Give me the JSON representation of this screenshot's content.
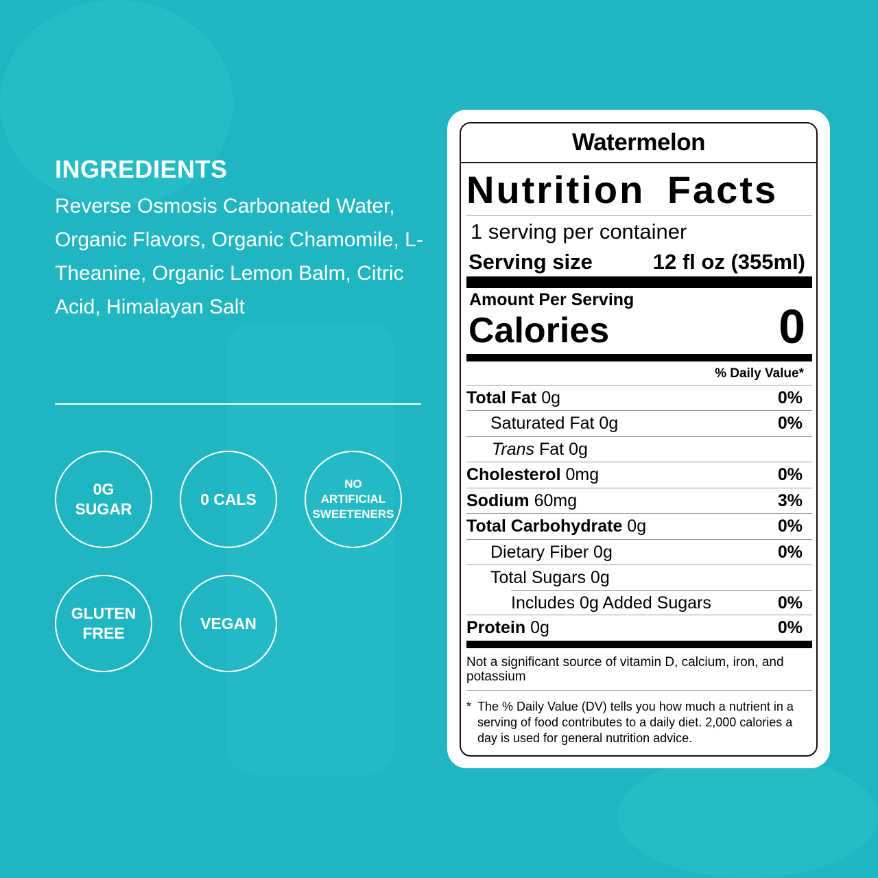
{
  "ingredients": {
    "title": "INGREDIENTS",
    "text": "Reverse Osmosis Carbonated Water, Organic Flavors, Organic Chamomile, L-Theanine, Organic Lemon Balm, Citric Acid, Himalayan Salt"
  },
  "badges": [
    "0G\nSUGAR",
    "0 CALS",
    "NO\nARTIFICIAL\nSWEETENERS",
    "GLUTEN\nFREE",
    "VEGAN"
  ],
  "label": {
    "flavor": "Watermelon",
    "title": "Nutrition Facts",
    "servings": "1 serving per container",
    "serving_size_label": "Serving size",
    "serving_size_value": "12 fl oz (355ml)",
    "amount_per_serving": "Amount Per Serving",
    "calories_label": "Calories",
    "calories_value": "0",
    "dv_header": "% Daily Value*",
    "rows": [
      {
        "name": "Total Fat",
        "amount": " 0g",
        "dv": "0%"
      },
      {
        "name": "Saturated Fat 0g",
        "amount": "",
        "dv": "0%"
      },
      {
        "name": "Trans",
        "amount": " Fat 0g",
        "dv": ""
      },
      {
        "name": "Cholesterol",
        "amount": " 0mg",
        "dv": "0%"
      },
      {
        "name": "Sodium",
        "amount": " 60mg",
        "dv": "3%"
      },
      {
        "name": "Total Carbohydrate",
        "amount": " 0g",
        "dv": "0%"
      },
      {
        "name": "Dietary Fiber 0g",
        "amount": "",
        "dv": "0%"
      },
      {
        "name": "Total Sugars 0g",
        "amount": "",
        "dv": ""
      },
      {
        "name": "Includes 0g Added Sugars",
        "amount": "",
        "dv": "0%"
      },
      {
        "name": "Protein",
        "amount": " 0g",
        "dv": "0%"
      }
    ],
    "note": "Not a significant source of vitamin D, calcium, iron, and potassium",
    "footnote_mark": "*",
    "footnote": "The % Daily Value (DV) tells you how much a nutrient in a serving of food contributes to a daily diet. 2,000 calories a day is used for general nutrition advice."
  },
  "colors": {
    "background": "#1fb6c1",
    "card": "#ffffff",
    "text": "#000000"
  }
}
